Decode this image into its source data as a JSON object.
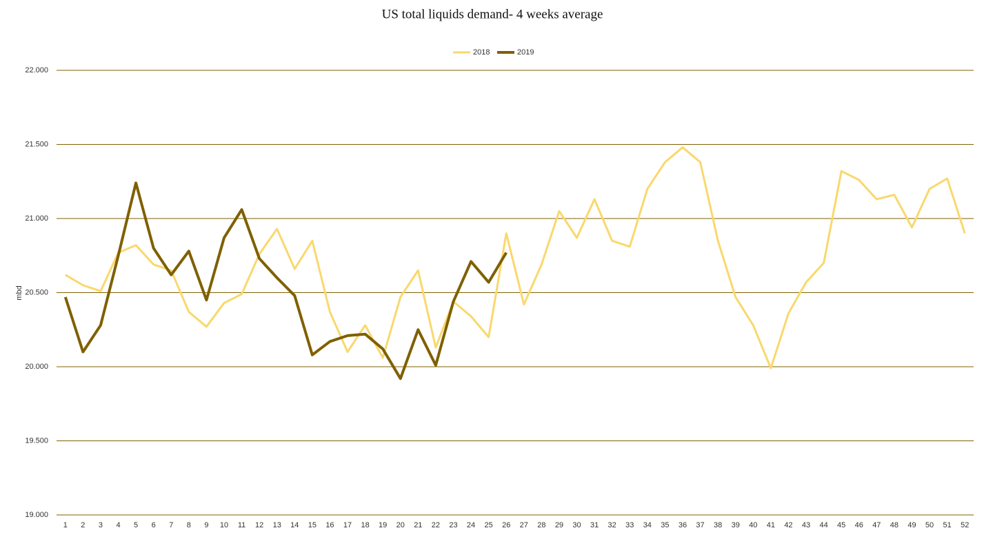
{
  "chart_data": {
    "type": "line",
    "title": "US total liquids demand- 4 weeks average",
    "y_label": "mbd",
    "categories": [
      1,
      2,
      3,
      4,
      5,
      6,
      7,
      8,
      9,
      10,
      11,
      12,
      13,
      14,
      15,
      16,
      17,
      18,
      19,
      20,
      21,
      22,
      23,
      24,
      25,
      26,
      27,
      28,
      29,
      30,
      31,
      32,
      33,
      34,
      35,
      36,
      37,
      38,
      39,
      40,
      41,
      42,
      43,
      44,
      45,
      46,
      47,
      48,
      49,
      50,
      51,
      52
    ],
    "series": [
      {
        "name": "2018",
        "color": "#f9d86c",
        "values": [
          20.62,
          20.55,
          20.51,
          20.77,
          20.82,
          20.69,
          20.65,
          20.37,
          20.27,
          20.43,
          20.49,
          20.76,
          20.93,
          20.66,
          20.85,
          20.37,
          20.1,
          20.28,
          20.06,
          20.47,
          20.65,
          20.13,
          20.44,
          20.34,
          20.2,
          20.9,
          20.42,
          20.69,
          21.05,
          20.87,
          21.13,
          20.85,
          20.81,
          21.2,
          21.38,
          21.48,
          21.38,
          20.85,
          20.47,
          20.28,
          19.99,
          20.36,
          20.57,
          20.7,
          21.32,
          21.26,
          21.13,
          21.16,
          20.94,
          21.2,
          21.27,
          20.9
        ]
      },
      {
        "name": "2019",
        "color": "#7f6000",
        "values": [
          20.47,
          20.1,
          20.28,
          20.75,
          21.24,
          20.8,
          20.62,
          20.78,
          20.45,
          20.87,
          21.06,
          20.73,
          20.6,
          20.48,
          20.08,
          20.17,
          20.21,
          20.22,
          20.12,
          19.92,
          20.25,
          20.01,
          20.44,
          20.71,
          20.57,
          20.77,
          null,
          null,
          null,
          null,
          null,
          null,
          null,
          null,
          null,
          null,
          null,
          null,
          null,
          null,
          null,
          null,
          null,
          null,
          null,
          null,
          null,
          null,
          null,
          null,
          null,
          null
        ]
      }
    ],
    "ylim": [
      19,
      22
    ],
    "yticks": [
      {
        "value": 19,
        "label": "19.000"
      },
      {
        "value": 19.5,
        "label": "19.500"
      },
      {
        "value": 20,
        "label": "20.000"
      },
      {
        "value": 20.5,
        "label": "20.500"
      },
      {
        "value": 21,
        "label": "21.000"
      },
      {
        "value": 21.5,
        "label": "21.500"
      },
      {
        "value": 22,
        "label": "22.000"
      }
    ],
    "grid": true,
    "grid_color": "#7f6000",
    "legend": "top"
  }
}
